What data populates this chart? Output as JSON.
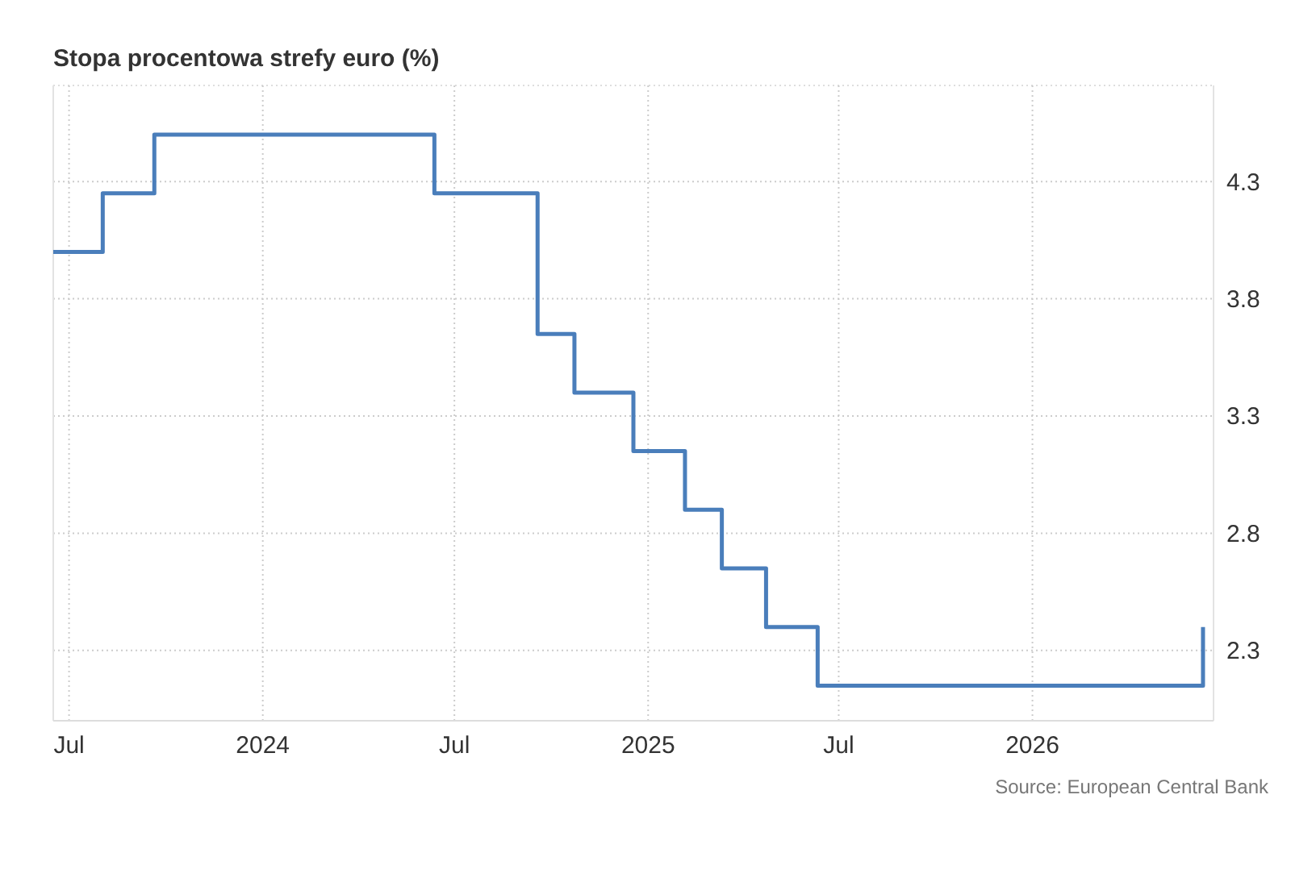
{
  "chart_data": {
    "type": "step",
    "title": "Stopa procentowa strefy euro (%)",
    "x": [
      "2023-06-16",
      "2023-08-02",
      "2023-09-20",
      "2024-06-12",
      "2024-09-18",
      "2024-10-23",
      "2024-12-18",
      "2025-02-05",
      "2025-03-12",
      "2025-04-23",
      "2025-06-11",
      "2026-06-12"
    ],
    "series": [
      {
        "color": "#4a7ebb",
        "values": [
          4.0,
          4.25,
          4.5,
          4.25,
          3.65,
          3.4,
          3.15,
          2.9,
          2.65,
          2.4,
          2.15,
          2.4
        ]
      }
    ],
    "xlim": [
      "2023-06-16",
      "2026-06-22"
    ],
    "xticks": [
      {
        "value": "2023-07-01",
        "label": "Jul"
      },
      {
        "value": "2024-01-01",
        "label": "2024"
      },
      {
        "value": "2024-07-01",
        "label": "Jul"
      },
      {
        "value": "2025-01-01",
        "label": "2025"
      },
      {
        "value": "2025-07-01",
        "label": "Jul"
      },
      {
        "value": "2026-01-01",
        "label": "2026"
      }
    ],
    "ylim": [
      2.0,
      4.71
    ],
    "yticks": [
      2.3,
      2.8,
      3.3,
      3.8,
      4.3
    ],
    "grid": true,
    "line_style": "solid",
    "marker": "none",
    "annotations": [
      "Source: European Central Bank"
    ]
  }
}
